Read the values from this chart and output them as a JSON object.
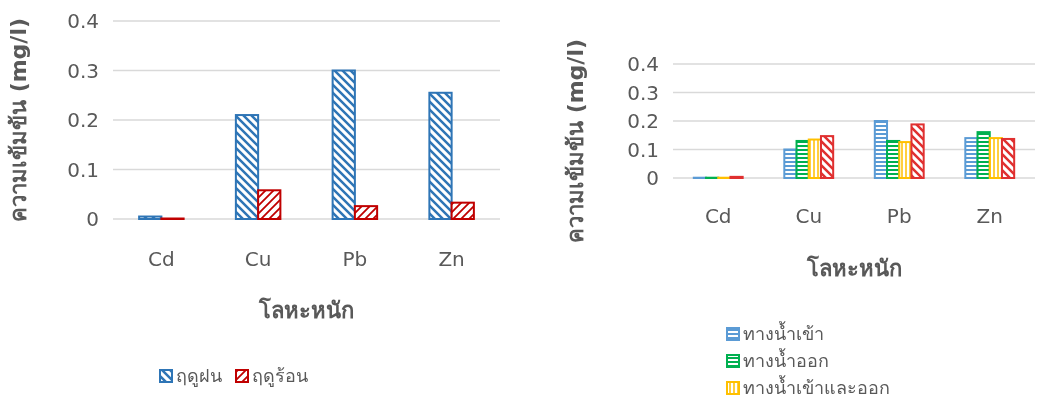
{
  "chart_data": [
    {
      "type": "bar",
      "xlabel": "โลหะหนัก",
      "ylabel": "ความเข้มข้น (mg/l)",
      "categories": [
        "Cd",
        "Cu",
        "Pb",
        "Zn"
      ],
      "ylim": [
        0,
        0.4
      ],
      "yticks": [
        0,
        0.1,
        0.2,
        0.3,
        0.4
      ],
      "grid": "y",
      "legend": "bottom",
      "series": [
        {
          "name": "ฤดูฝน",
          "color": "#2e75b6",
          "values": [
            0.005,
            0.21,
            0.3,
            0.255
          ]
        },
        {
          "name": "ฤดูร้อน",
          "color": "#c00000",
          "values": [
            0.001,
            0.058,
            0.026,
            0.033
          ]
        }
      ]
    },
    {
      "type": "bar",
      "xlabel": "โลหะหนัก",
      "ylabel": "ความเข้มข้น (mg/l)",
      "categories": [
        "Cd",
        "Cu",
        "Pb",
        "Zn"
      ],
      "ylim": [
        0,
        0.4
      ],
      "yticks": [
        0,
        0.1,
        0.2,
        0.3,
        0.4
      ],
      "grid": "y",
      "legend": "bottom",
      "series": [
        {
          "name": "ทางน้ำเข้า",
          "color": "#5b9bd5",
          "values": [
            0.001,
            0.1,
            0.2,
            0.14
          ]
        },
        {
          "name": "ทางน้ำออก",
          "color": "#00b050",
          "values": [
            0.001,
            0.13,
            0.13,
            0.161
          ]
        },
        {
          "name": "ทางน้ำเข้าและออก",
          "color": "#ffc000",
          "values": [
            0.001,
            0.135,
            0.126,
            0.14
          ]
        },
        {
          "color": "#e03030",
          "values": [
            0.004,
            0.147,
            0.188,
            0.137
          ]
        }
      ]
    }
  ]
}
